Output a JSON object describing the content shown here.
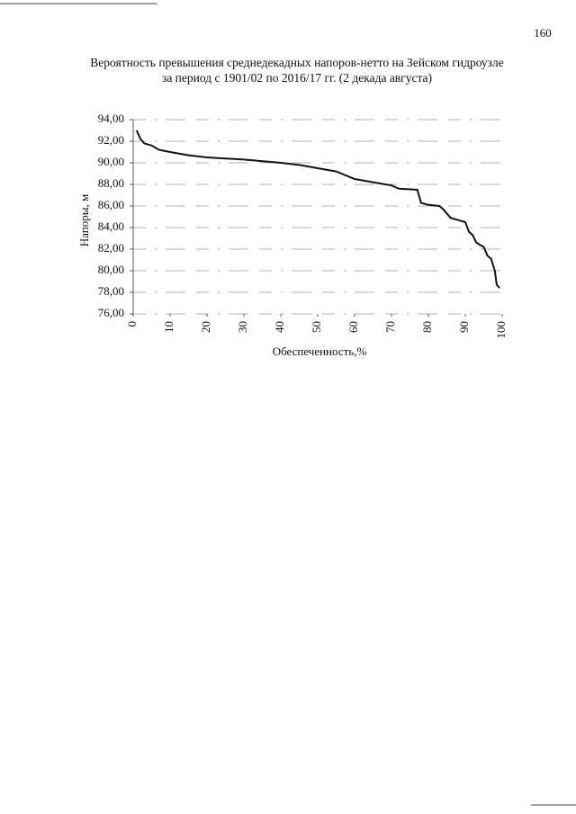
{
  "page_number": "160",
  "chart_data": {
    "type": "line",
    "title": "Вероятность превышения среднедекадных напоров-нетто на Зейском гидроузле",
    "subtitle": "за период с 1901/02 по 2016/17 гг. (2 декада августа)",
    "x_label": "Обеспеченность,%",
    "y_label": "Напоры, м",
    "xlim": [
      0,
      100
    ],
    "xticks": [
      0,
      10,
      20,
      30,
      40,
      50,
      60,
      70,
      80,
      90,
      100
    ],
    "ylim": [
      76,
      94
    ],
    "yticks": [
      {
        "value": 76,
        "label": "76,00"
      },
      {
        "value": 78,
        "label": "78,00"
      },
      {
        "value": 80,
        "label": "80,00"
      },
      {
        "value": 82,
        "label": "82,00"
      },
      {
        "value": 84,
        "label": "84,00"
      },
      {
        "value": 86,
        "label": "86,00"
      },
      {
        "value": 88,
        "label": "88,00"
      },
      {
        "value": 90,
        "label": "90,00"
      },
      {
        "value": 92,
        "label": "92,00"
      },
      {
        "value": 94,
        "label": "94,00"
      }
    ],
    "grid": true,
    "color": "#111111",
    "x": [
      0.9,
      2,
      3,
      5,
      7,
      10,
      15,
      20,
      30,
      40,
      45,
      50,
      55,
      60,
      65,
      70,
      72,
      77,
      78,
      80,
      83,
      84,
      86,
      88,
      90,
      91,
      92,
      93,
      94,
      95,
      96,
      97,
      98,
      98.5,
      99.3
    ],
    "values": [
      93.0,
      92.2,
      91.8,
      91.6,
      91.2,
      91.0,
      90.7,
      90.5,
      90.3,
      90.0,
      89.8,
      89.5,
      89.2,
      88.5,
      88.2,
      87.9,
      87.6,
      87.5,
      86.3,
      86.1,
      86.0,
      85.7,
      84.9,
      84.7,
      84.5,
      83.6,
      83.3,
      82.6,
      82.4,
      82.2,
      81.4,
      81.1,
      80.0,
      78.7,
      78.4
    ]
  }
}
